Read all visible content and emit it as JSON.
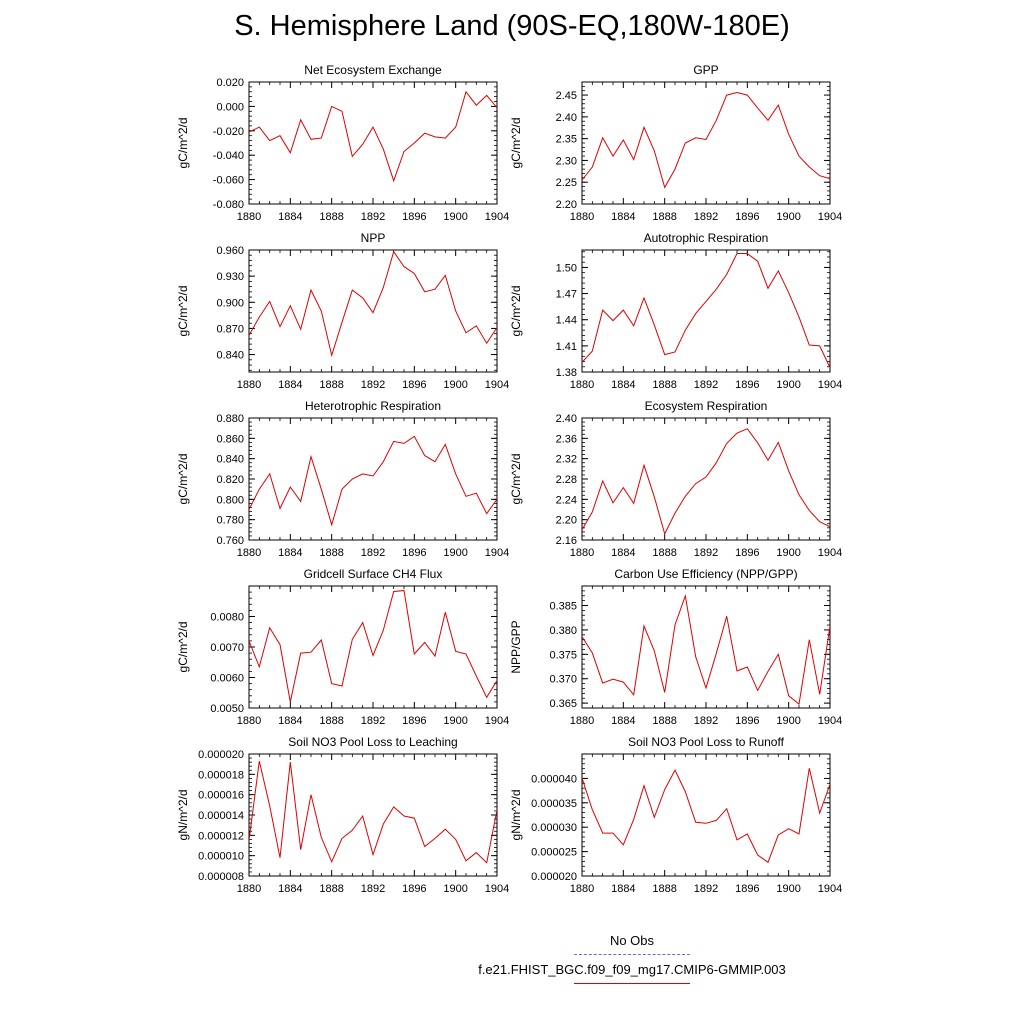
{
  "page": {
    "title": "S. Hemisphere Land (90S-EQ,180W-180E)"
  },
  "legend": {
    "obs_label": "No Obs",
    "obs_color": "#6a6ad8",
    "case_label": "f.e21.FHIST_BGC.f09_f09_mg17.CMIP6-GMMIP.003",
    "case_color": "#e00000"
  },
  "chart_data": [
    {
      "type": "line",
      "title": "Net Ecosystem Exchange",
      "ylabel": "gC/m^2/d",
      "xlim": [
        1880,
        1904
      ],
      "ylim": [
        -0.08,
        0.02
      ],
      "yticks": [
        0.02,
        0.0,
        -0.02,
        -0.04,
        -0.06,
        -0.08
      ],
      "ytick_labels": [
        "0.020",
        "0.000",
        "-0.020",
        "-0.040",
        "-0.060",
        "-0.080"
      ],
      "xticks": [
        1880,
        1884,
        1888,
        1892,
        1896,
        1900,
        1904
      ],
      "x": [
        1880,
        1881,
        1882,
        1883,
        1884,
        1885,
        1886,
        1887,
        1888,
        1889,
        1890,
        1891,
        1892,
        1893,
        1894,
        1895,
        1896,
        1897,
        1898,
        1899,
        1900,
        1901,
        1902,
        1903,
        1904
      ],
      "series": [
        {
          "name": "f.e21.FHIST_BGC.f09_f09_mg17.CMIP6-GMMIP.003",
          "color": "#e00000",
          "values": [
            -0.021,
            -0.017,
            -0.028,
            -0.024,
            -0.038,
            -0.011,
            -0.027,
            -0.026,
            0.0,
            -0.004,
            -0.041,
            -0.031,
            -0.017,
            -0.035,
            -0.061,
            -0.037,
            -0.03,
            -0.022,
            -0.025,
            -0.026,
            -0.017,
            0.012,
            0.001,
            0.009,
            -0.001
          ]
        }
      ]
    },
    {
      "type": "line",
      "title": "GPP",
      "ylabel": "gC/m^2/d",
      "xlim": [
        1880,
        1904
      ],
      "ylim": [
        2.2,
        2.48
      ],
      "yticks": [
        2.45,
        2.4,
        2.35,
        2.3,
        2.25,
        2.2
      ],
      "ytick_labels": [
        "2.45",
        "2.40",
        "2.35",
        "2.30",
        "2.25",
        "2.20"
      ],
      "xticks": [
        1880,
        1884,
        1888,
        1892,
        1896,
        1900,
        1904
      ],
      "x": [
        1880,
        1881,
        1882,
        1883,
        1884,
        1885,
        1886,
        1887,
        1888,
        1889,
        1890,
        1891,
        1892,
        1893,
        1894,
        1895,
        1896,
        1897,
        1898,
        1899,
        1900,
        1901,
        1902,
        1903,
        1904
      ],
      "series": [
        {
          "name": "f.e21.FHIST_BGC.f09_f09_mg17.CMIP6-GMMIP.003",
          "color": "#e00000",
          "values": [
            2.255,
            2.285,
            2.352,
            2.31,
            2.347,
            2.302,
            2.376,
            2.322,
            2.238,
            2.28,
            2.34,
            2.352,
            2.348,
            2.392,
            2.45,
            2.456,
            2.45,
            2.42,
            2.392,
            2.427,
            2.36,
            2.31,
            2.285,
            2.265,
            2.258
          ]
        }
      ]
    },
    {
      "type": "line",
      "title": "NPP",
      "ylabel": "gC/m^2/d",
      "xlim": [
        1880,
        1904
      ],
      "ylim": [
        0.82,
        0.96
      ],
      "yticks": [
        0.96,
        0.93,
        0.9,
        0.87,
        0.84
      ],
      "ytick_labels": [
        "0.960",
        "0.930",
        "0.900",
        "0.870",
        "0.840"
      ],
      "xticks": [
        1880,
        1884,
        1888,
        1892,
        1896,
        1900,
        1904
      ],
      "x": [
        1880,
        1881,
        1882,
        1883,
        1884,
        1885,
        1886,
        1887,
        1888,
        1889,
        1890,
        1891,
        1892,
        1893,
        1894,
        1895,
        1896,
        1897,
        1898,
        1899,
        1900,
        1901,
        1902,
        1903,
        1904
      ],
      "series": [
        {
          "name": "f.e21.FHIST_BGC.f09_f09_mg17.CMIP6-GMMIP.003",
          "color": "#e00000",
          "values": [
            0.862,
            0.883,
            0.901,
            0.872,
            0.896,
            0.869,
            0.914,
            0.89,
            0.839,
            0.877,
            0.914,
            0.905,
            0.888,
            0.917,
            0.958,
            0.941,
            0.933,
            0.912,
            0.915,
            0.931,
            0.89,
            0.865,
            0.873,
            0.853,
            0.871
          ]
        }
      ]
    },
    {
      "type": "line",
      "title": "Autotrophic Respiration",
      "ylabel": "gC/m^2/d",
      "xlim": [
        1880,
        1904
      ],
      "ylim": [
        1.38,
        1.52
      ],
      "yticks": [
        1.5,
        1.47,
        1.44,
        1.41,
        1.38
      ],
      "ytick_labels": [
        "1.50",
        "1.47",
        "1.44",
        "1.41",
        "1.38"
      ],
      "xticks": [
        1880,
        1884,
        1888,
        1892,
        1896,
        1900,
        1904
      ],
      "x": [
        1880,
        1881,
        1882,
        1883,
        1884,
        1885,
        1886,
        1887,
        1888,
        1889,
        1890,
        1891,
        1892,
        1893,
        1894,
        1895,
        1896,
        1897,
        1898,
        1899,
        1900,
        1901,
        1902,
        1903,
        1904
      ],
      "series": [
        {
          "name": "f.e21.FHIST_BGC.f09_f09_mg17.CMIP6-GMMIP.003",
          "color": "#e00000",
          "values": [
            1.391,
            1.404,
            1.451,
            1.439,
            1.451,
            1.433,
            1.465,
            1.434,
            1.4,
            1.403,
            1.428,
            1.447,
            1.461,
            1.475,
            1.492,
            1.516,
            1.516,
            1.507,
            1.476,
            1.496,
            1.471,
            1.443,
            1.411,
            1.41,
            1.385
          ]
        }
      ]
    },
    {
      "type": "line",
      "title": "Heterotrophic Respiration",
      "ylabel": "gC/m^2/d",
      "xlim": [
        1880,
        1904
      ],
      "ylim": [
        0.76,
        0.88
      ],
      "yticks": [
        0.88,
        0.86,
        0.84,
        0.82,
        0.8,
        0.78,
        0.76
      ],
      "ytick_labels": [
        "0.880",
        "0.860",
        "0.840",
        "0.820",
        "0.800",
        "0.780",
        "0.760"
      ],
      "xticks": [
        1880,
        1884,
        1888,
        1892,
        1896,
        1900,
        1904
      ],
      "x": [
        1880,
        1881,
        1882,
        1883,
        1884,
        1885,
        1886,
        1887,
        1888,
        1889,
        1890,
        1891,
        1892,
        1893,
        1894,
        1895,
        1896,
        1897,
        1898,
        1899,
        1900,
        1901,
        1902,
        1903,
        1904
      ],
      "series": [
        {
          "name": "f.e21.FHIST_BGC.f09_f09_mg17.CMIP6-GMMIP.003",
          "color": "#e00000",
          "values": [
            0.79,
            0.81,
            0.825,
            0.791,
            0.812,
            0.798,
            0.842,
            0.81,
            0.775,
            0.81,
            0.82,
            0.825,
            0.823,
            0.837,
            0.857,
            0.855,
            0.862,
            0.843,
            0.837,
            0.854,
            0.825,
            0.803,
            0.806,
            0.786,
            0.8
          ]
        }
      ]
    },
    {
      "type": "line",
      "title": "Ecosystem Respiration",
      "ylabel": "gC/m^2/d",
      "xlim": [
        1880,
        1904
      ],
      "ylim": [
        2.16,
        2.4
      ],
      "yticks": [
        2.4,
        2.36,
        2.32,
        2.28,
        2.24,
        2.2,
        2.16
      ],
      "ytick_labels": [
        "2.40",
        "2.36",
        "2.32",
        "2.28",
        "2.24",
        "2.20",
        "2.16"
      ],
      "xticks": [
        1880,
        1884,
        1888,
        1892,
        1896,
        1900,
        1904
      ],
      "x": [
        1880,
        1881,
        1882,
        1883,
        1884,
        1885,
        1886,
        1887,
        1888,
        1889,
        1890,
        1891,
        1892,
        1893,
        1894,
        1895,
        1896,
        1897,
        1898,
        1899,
        1900,
        1901,
        1902,
        1903,
        1904
      ],
      "series": [
        {
          "name": "f.e21.FHIST_BGC.f09_f09_mg17.CMIP6-GMMIP.003",
          "color": "#e00000",
          "values": [
            2.18,
            2.215,
            2.276,
            2.233,
            2.263,
            2.232,
            2.307,
            2.245,
            2.172,
            2.213,
            2.246,
            2.271,
            2.284,
            2.312,
            2.35,
            2.37,
            2.379,
            2.351,
            2.317,
            2.352,
            2.296,
            2.249,
            2.218,
            2.196,
            2.186
          ]
        }
      ]
    },
    {
      "type": "line",
      "title": "Gridcell Surface CH4 Flux",
      "ylabel": "gC/m^2/d",
      "xlim": [
        1880,
        1904
      ],
      "ylim": [
        0.005,
        0.009
      ],
      "yticks": [
        0.008,
        0.007,
        0.006,
        0.005
      ],
      "ytick_labels": [
        "0.0080",
        "0.0070",
        "0.0060",
        "0.0050"
      ],
      "xticks": [
        1880,
        1884,
        1888,
        1892,
        1896,
        1900,
        1904
      ],
      "x": [
        1880,
        1881,
        1882,
        1883,
        1884,
        1885,
        1886,
        1887,
        1888,
        1889,
        1890,
        1891,
        1892,
        1893,
        1894,
        1895,
        1896,
        1897,
        1898,
        1899,
        1900,
        1901,
        1902,
        1903,
        1904
      ],
      "series": [
        {
          "name": "f.e21.FHIST_BGC.f09_f09_mg17.CMIP6-GMMIP.003",
          "color": "#e00000",
          "values": [
            0.0072,
            0.00635,
            0.00763,
            0.00708,
            0.0052,
            0.0068,
            0.00683,
            0.00723,
            0.0058,
            0.00572,
            0.00725,
            0.0078,
            0.00672,
            0.00755,
            0.00882,
            0.00885,
            0.00677,
            0.00715,
            0.0067,
            0.00814,
            0.00686,
            0.00677,
            0.00605,
            0.00535,
            0.0059
          ]
        }
      ]
    },
    {
      "type": "line",
      "title": "Carbon Use Efficiency (NPP/GPP)",
      "ylabel": "NPP/GPP",
      "xlim": [
        1880,
        1904
      ],
      "ylim": [
        0.364,
        0.389
      ],
      "yticks": [
        0.385,
        0.38,
        0.375,
        0.37,
        0.365
      ],
      "ytick_labels": [
        "0.385",
        "0.380",
        "0.375",
        "0.370",
        "0.365"
      ],
      "xticks": [
        1880,
        1884,
        1888,
        1892,
        1896,
        1900,
        1904
      ],
      "x": [
        1880,
        1881,
        1882,
        1883,
        1884,
        1885,
        1886,
        1887,
        1888,
        1889,
        1890,
        1891,
        1892,
        1893,
        1894,
        1895,
        1896,
        1897,
        1898,
        1899,
        1900,
        1901,
        1902,
        1903,
        1904
      ],
      "series": [
        {
          "name": "f.e21.FHIST_BGC.f09_f09_mg17.CMIP6-GMMIP.003",
          "color": "#e00000",
          "values": [
            0.3786,
            0.3753,
            0.3691,
            0.3699,
            0.3693,
            0.3667,
            0.3808,
            0.3757,
            0.3672,
            0.381,
            0.387,
            0.3745,
            0.3681,
            0.3752,
            0.3828,
            0.3716,
            0.3724,
            0.3676,
            0.3715,
            0.375,
            0.3665,
            0.3648,
            0.378,
            0.3668,
            0.3808
          ]
        }
      ]
    },
    {
      "type": "line",
      "title": "Soil NO3 Pool Loss to Leaching",
      "ylabel": "gN/m^2/d",
      "xlim": [
        1880,
        1904
      ],
      "ylim": [
        8e-06,
        2e-05
      ],
      "yticks": [
        2e-05,
        1.8e-05,
        1.6e-05,
        1.4e-05,
        1.2e-05,
        1e-05,
        8e-06
      ],
      "ytick_labels": [
        "0.000020",
        "0.000018",
        "0.000016",
        "0.000014",
        "0.000012",
        "0.000010",
        "0.000008"
      ],
      "xticks": [
        1880,
        1884,
        1888,
        1892,
        1896,
        1900,
        1904
      ],
      "x": [
        1880,
        1881,
        1882,
        1883,
        1884,
        1885,
        1886,
        1887,
        1888,
        1889,
        1890,
        1891,
        1892,
        1893,
        1894,
        1895,
        1896,
        1897,
        1898,
        1899,
        1900,
        1901,
        1902,
        1903,
        1904
      ],
      "series": [
        {
          "name": "f.e21.FHIST_BGC.f09_f09_mg17.CMIP6-GMMIP.003",
          "color": "#e00000",
          "values": [
            1.15e-05,
            1.93e-05,
            1.49e-05,
            9.8e-06,
            1.92e-05,
            1.06e-05,
            1.6e-05,
            1.18e-05,
            9.4e-06,
            1.17e-05,
            1.25e-05,
            1.39e-05,
            1.01e-05,
            1.31e-05,
            1.48e-05,
            1.39e-05,
            1.37e-05,
            1.09e-05,
            1.17e-05,
            1.26e-05,
            1.16e-05,
            9.5e-06,
            1.03e-05,
            9.3e-06,
            1.45e-05
          ]
        }
      ]
    },
    {
      "type": "line",
      "title": "Soil NO3 Pool Loss to Runoff",
      "ylabel": "gN/m^2/d",
      "xlim": [
        1880,
        1904
      ],
      "ylim": [
        2e-05,
        4.5e-05
      ],
      "yticks": [
        4e-05,
        3.5e-05,
        3e-05,
        2.5e-05,
        2e-05
      ],
      "ytick_labels": [
        "0.000040",
        "0.000035",
        "0.000030",
        "0.000025",
        "0.000020"
      ],
      "xticks": [
        1880,
        1884,
        1888,
        1892,
        1896,
        1900,
        1904
      ],
      "x": [
        1880,
        1881,
        1882,
        1883,
        1884,
        1885,
        1886,
        1887,
        1888,
        1889,
        1890,
        1891,
        1892,
        1893,
        1894,
        1895,
        1896,
        1897,
        1898,
        1899,
        1900,
        1901,
        1902,
        1903,
        1904
      ],
      "series": [
        {
          "name": "f.e21.FHIST_BGC.f09_f09_mg17.CMIP6-GMMIP.003",
          "color": "#e00000",
          "values": [
            4.01e-05,
            3.36e-05,
            2.88e-05,
            2.88e-05,
            2.64e-05,
            3.16e-05,
            3.85e-05,
            3.2e-05,
            3.77e-05,
            4.17e-05,
            3.73e-05,
            3.1e-05,
            3.08e-05,
            3.14e-05,
            3.38e-05,
            2.74e-05,
            2.86e-05,
            2.43e-05,
            2.28e-05,
            2.84e-05,
            2.97e-05,
            2.86e-05,
            4.21e-05,
            3.29e-05,
            3.88e-05
          ]
        }
      ]
    }
  ]
}
